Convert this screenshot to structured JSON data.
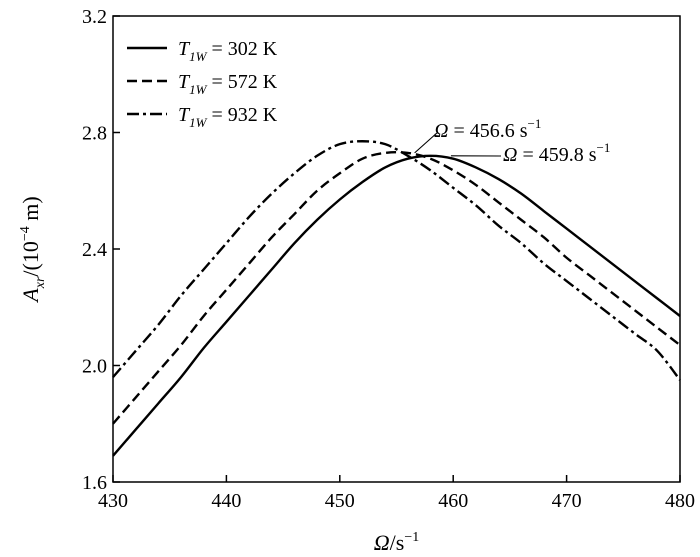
{
  "chart_data": {
    "type": "line",
    "title": "",
    "xlabel": {
      "main": "Ω",
      "unit": "/s",
      "sup": "−1"
    },
    "ylabel": {
      "main": "A",
      "sub": "xr",
      "unit": "/(10",
      "sup": "−4",
      "unit_end": " m)"
    },
    "xlim": [
      430,
      480
    ],
    "ylim": [
      1.6,
      3.2
    ],
    "xticks": [
      430,
      440,
      450,
      460,
      470,
      480
    ],
    "yticks": [
      1.6,
      2.0,
      2.4,
      2.8,
      3.2
    ],
    "xtick_labels": [
      "430",
      "440",
      "450",
      "460",
      "470",
      "480"
    ],
    "ytick_labels": [
      "1.6",
      "2.0",
      "2.4",
      "2.8",
      "3.2"
    ],
    "grid": false,
    "legend_position": "top-left",
    "series": [
      {
        "name": "T1W = 302 K",
        "legend": {
          "var": "T",
          "sub": "1W",
          "rest": " = 302 K"
        },
        "style": "solid",
        "x": [
          430,
          432,
          434,
          436,
          438,
          440,
          442,
          444,
          446,
          448,
          450,
          452,
          454,
          456,
          458,
          460,
          462,
          464,
          466,
          468,
          470,
          472,
          474,
          476,
          478,
          480
        ],
        "values": [
          1.69,
          1.78,
          1.87,
          1.96,
          2.06,
          2.15,
          2.24,
          2.33,
          2.42,
          2.5,
          2.57,
          2.63,
          2.68,
          2.71,
          2.72,
          2.71,
          2.68,
          2.64,
          2.59,
          2.53,
          2.47,
          2.41,
          2.35,
          2.29,
          2.23,
          2.17
        ]
      },
      {
        "name": "T1W = 572 K",
        "legend": {
          "var": "T",
          "sub": "1W",
          "rest": " = 572 K"
        },
        "style": "dashed",
        "x": [
          430,
          432,
          434,
          436,
          438,
          440,
          442,
          444,
          446,
          448,
          450,
          452,
          454,
          456,
          458,
          460,
          462,
          464,
          466,
          468,
          470,
          472,
          474,
          476,
          478,
          480
        ],
        "values": [
          1.8,
          1.89,
          1.98,
          2.07,
          2.17,
          2.26,
          2.35,
          2.44,
          2.52,
          2.6,
          2.66,
          2.71,
          2.73,
          2.73,
          2.71,
          2.67,
          2.62,
          2.56,
          2.5,
          2.44,
          2.37,
          2.31,
          2.25,
          2.19,
          2.13,
          2.07
        ]
      },
      {
        "name": "T1W = 932 K",
        "legend": {
          "var": "T",
          "sub": "1W",
          "rest": " = 932 K"
        },
        "style": "dashdot",
        "x": [
          430,
          432,
          434,
          436,
          438,
          440,
          442,
          444,
          446,
          448,
          450,
          452,
          454,
          456,
          458,
          460,
          462,
          464,
          466,
          468,
          470,
          472,
          474,
          476,
          478,
          480
        ],
        "values": [
          1.96,
          2.05,
          2.14,
          2.24,
          2.33,
          2.42,
          2.51,
          2.59,
          2.66,
          2.72,
          2.76,
          2.77,
          2.76,
          2.72,
          2.67,
          2.61,
          2.55,
          2.48,
          2.42,
          2.35,
          2.29,
          2.23,
          2.17,
          2.11,
          2.05,
          1.95
        ]
      }
    ],
    "annotations": [
      {
        "var": "Ω",
        "rest": " = 456.6 s",
        "sup": "−1",
        "point": [
          456.6,
          2.73
        ]
      },
      {
        "var": "Ω",
        "rest": " = 459.8 s",
        "sup": "−1",
        "point": [
          459.8,
          2.72
        ]
      }
    ]
  }
}
